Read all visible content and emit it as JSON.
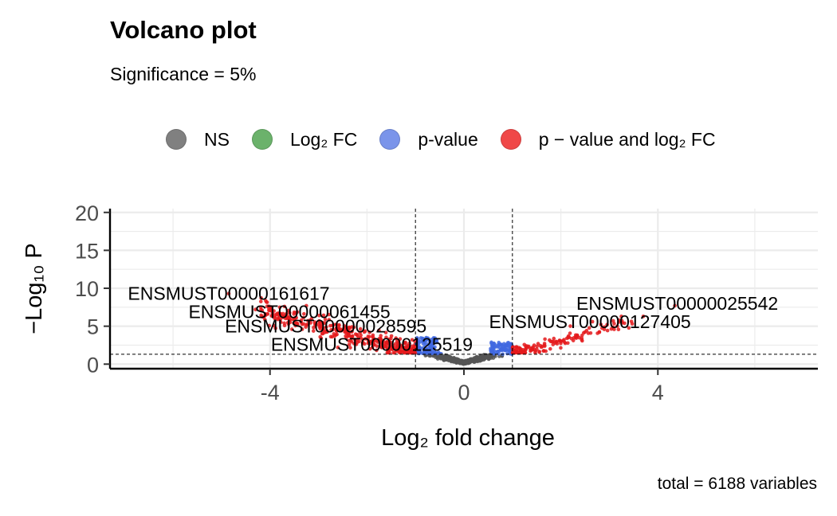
{
  "title": "Volcano plot",
  "subtitle": "Significance = 5%",
  "caption": "total = 6188 variables",
  "legend": [
    {
      "label": "NS",
      "color": "#808080"
    },
    {
      "label": "Log₂ FC",
      "color": "#6bb26b"
    },
    {
      "label": "p-value",
      "color": "#7a94ea"
    },
    {
      "label": "p − value and log₂ FC",
      "color": "#f04848"
    }
  ],
  "chart_data": {
    "type": "scatter",
    "title": "Volcano plot",
    "subtitle": "Significance = 5%",
    "xlabel": "Log₂ fold change",
    "ylabel": "−Log₁₀ P",
    "xlim": [
      -7.3,
      7.3
    ],
    "ylim": [
      -0.6,
      20.5
    ],
    "x_ticks": [
      -4,
      0,
      4
    ],
    "y_ticks": [
      0,
      5,
      10,
      15,
      20
    ],
    "grid": true,
    "legend_position": "top",
    "cutoffs": {
      "log2fc": [
        -1,
        1
      ],
      "neg_log10_p": 1.3
    },
    "colors": {
      "NS": "#555555",
      "Log2FC": "#2ca02c",
      "pvalue": "#4169e1",
      "both": "#e41a1c"
    },
    "labels": [
      {
        "text": "ENSMUST00000161617",
        "x": -4.85,
        "y": 9.3
      },
      {
        "text": "ENSMUST00000061455",
        "x": -3.6,
        "y": 6.9
      },
      {
        "text": "ENSMUST00000028595",
        "x": -2.85,
        "y": 5.0
      },
      {
        "text": "ENSMUST00000125519",
        "x": -1.9,
        "y": 2.6
      },
      {
        "text": "ENSMUST00000127405",
        "x": 2.6,
        "y": 5.6
      },
      {
        "text": "ENSMUST00000025542",
        "x": 4.4,
        "y": 8.0
      }
    ],
    "total_variables": 6188
  }
}
